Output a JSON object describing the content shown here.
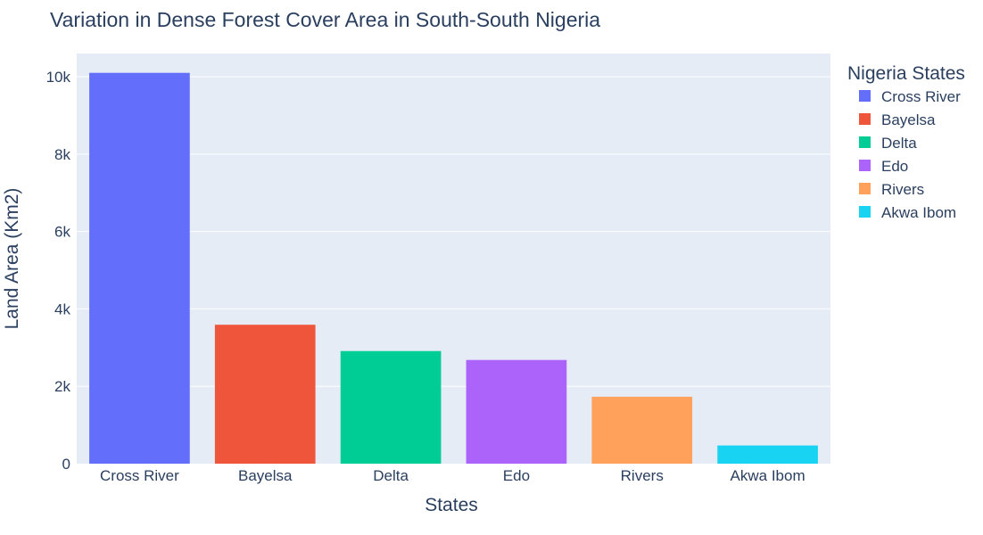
{
  "chart_data": {
    "type": "bar",
    "title": "Variation in Dense Forest Cover Area in South-South Nigeria",
    "xlabel": "States",
    "ylabel": "Land Area (Km2)",
    "categories": [
      "Cross River",
      "Bayelsa",
      "Delta",
      "Edo",
      "Rivers",
      "Akwa Ibom"
    ],
    "values": [
      10100,
      3590,
      2910,
      2680,
      1730,
      470
    ],
    "colors": [
      "#636efa",
      "#EF553B",
      "#00cc96",
      "#ab63fa",
      "#FFA15A",
      "#19d3f3"
    ],
    "ylim": [
      0,
      10600
    ],
    "yticks": [
      0,
      2000,
      4000,
      6000,
      8000,
      10000
    ],
    "ytick_labels": [
      "0",
      "2k",
      "4k",
      "6k",
      "8k",
      "10k"
    ],
    "grid": true,
    "plot_background": "#e5ecf6",
    "legend": {
      "title": "Nigeria States",
      "placement": "right",
      "entries": [
        "Cross River",
        "Bayelsa",
        "Delta",
        "Edo",
        "Rivers",
        "Akwa Ibom"
      ]
    }
  }
}
